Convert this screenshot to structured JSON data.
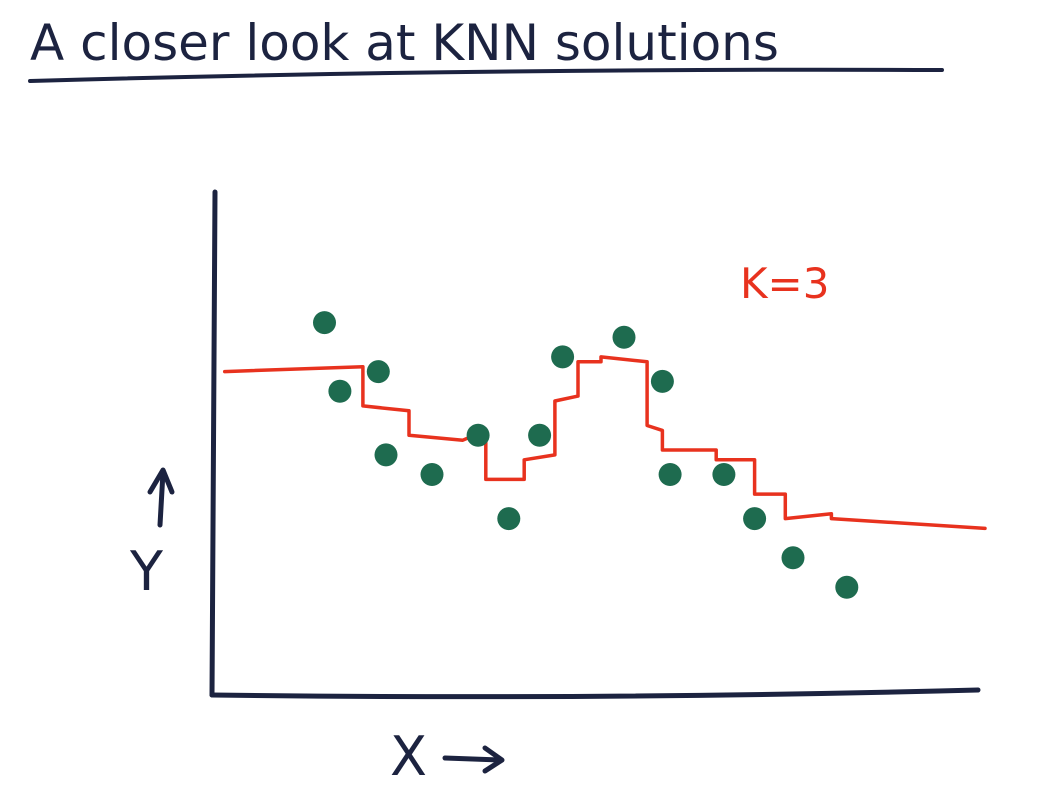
{
  "page": {
    "title": "A closer look at KNN solutions"
  },
  "colors": {
    "ink": "#1c2340",
    "point": "#1e6b4f",
    "fit": "#e8321e"
  },
  "chart_data": {
    "type": "scatter",
    "title": "",
    "xlabel": "X",
    "ylabel": "Y",
    "xlim": [
      0,
      100
    ],
    "ylim": [
      0,
      100
    ],
    "annotation": "K=3",
    "grid": false,
    "points": [
      {
        "x": 14,
        "y": 76
      },
      {
        "x": 16,
        "y": 62
      },
      {
        "x": 21,
        "y": 66
      },
      {
        "x": 22,
        "y": 49
      },
      {
        "x": 28,
        "y": 45
      },
      {
        "x": 34,
        "y": 53
      },
      {
        "x": 38,
        "y": 36
      },
      {
        "x": 42,
        "y": 53
      },
      {
        "x": 45,
        "y": 69
      },
      {
        "x": 53,
        "y": 73
      },
      {
        "x": 58,
        "y": 64
      },
      {
        "x": 59,
        "y": 45
      },
      {
        "x": 66,
        "y": 45
      },
      {
        "x": 70,
        "y": 36
      },
      {
        "x": 75,
        "y": 28
      },
      {
        "x": 82,
        "y": 22
      }
    ],
    "series": [
      {
        "type": "step",
        "x": [
          1,
          19,
          19,
          25,
          25,
          32,
          32,
          35,
          35,
          40,
          40,
          44,
          44,
          47,
          47,
          50,
          50,
          56,
          56,
          58,
          58,
          65,
          65,
          70,
          70,
          74,
          74,
          80,
          80,
          100
        ],
        "y": [
          66,
          67,
          59,
          58,
          53,
          52,
          52,
          54,
          44,
          44,
          48,
          49,
          60,
          61,
          68,
          68,
          69,
          68,
          55,
          54,
          50,
          50,
          48,
          48,
          41,
          41,
          36,
          37,
          36,
          34
        ]
      }
    ]
  }
}
